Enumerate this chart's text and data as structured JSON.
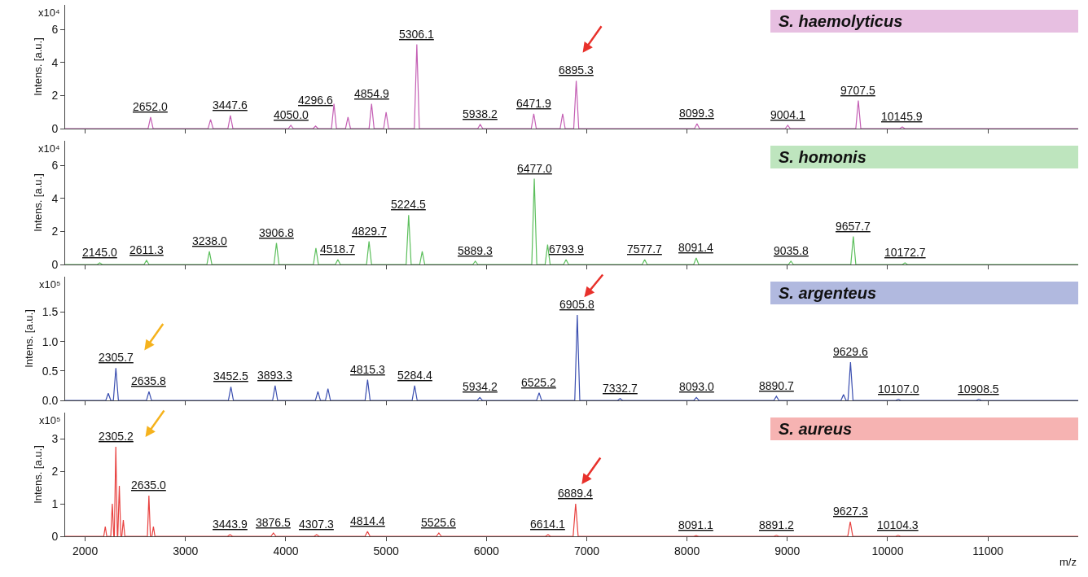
{
  "chart_data": [
    {
      "type": "line",
      "title": "S. haemolyticus",
      "ylabel": "Intens. [a.u.]",
      "color": "#c45fb4",
      "xlim": [
        1800,
        11900
      ],
      "ylim": [
        0,
        7.5
      ],
      "yticks": [
        0,
        2,
        4,
        6
      ],
      "xticks": [
        2000,
        3000,
        4000,
        5000,
        6000,
        7000,
        8000,
        9000,
        10000,
        11000
      ],
      "tick_labels": "y",
      "x": [
        1800,
        2627,
        2652.0,
        2677,
        3225,
        3250,
        3275,
        3422.6,
        3447.6,
        3472.6,
        4025,
        4050.0,
        4075,
        4271.6,
        4296.6,
        4321.6,
        4455,
        4480,
        4505,
        4595,
        4620,
        4645,
        4829.9,
        4854.9,
        4879.9,
        4975,
        5000,
        5025,
        5281.1,
        5306.1,
        5331.1,
        5913.2,
        5938.2,
        5963.2,
        6446.9,
        6471.9,
        6496.9,
        6735,
        6760,
        6785,
        6870.3,
        6895.3,
        6920.3,
        8074.3,
        8099.3,
        8124.3,
        8979.1,
        9004.1,
        9029.1,
        9682.5,
        9707.5,
        9732.5,
        10120.9,
        10145.9,
        10170.9,
        11900
      ],
      "values": [
        0,
        0,
        0.7,
        0,
        0,
        0.55,
        0,
        0,
        0.8,
        0,
        0,
        0.2,
        0,
        0,
        0.15,
        0,
        0,
        1.5,
        0,
        0,
        0.7,
        0,
        0,
        1.5,
        0,
        0,
        1.0,
        0,
        0,
        5.1,
        0,
        0,
        0.25,
        0,
        0,
        0.9,
        0,
        0,
        0.9,
        0,
        0,
        2.9,
        0,
        0,
        0.3,
        0,
        0,
        0.2,
        0,
        0,
        1.7,
        0,
        0,
        0.1,
        0,
        0
      ],
      "annotations": [
        "x10⁴",
        {
          "text": "2652.0",
          "x": 2652.0,
          "y": 0.7
        },
        {
          "text": "3447.6",
          "x": 3447.6,
          "y": 0.8
        },
        {
          "text": "4050.0",
          "x": 4050.0,
          "y": 0.2
        },
        {
          "text": "4296.6",
          "x": 4296.6,
          "y": 0.15
        },
        {
          "text": "4854.9",
          "x": 4854.9,
          "y": 1.5
        },
        {
          "text": "5306.1",
          "x": 5306.1,
          "y": 5.1
        },
        {
          "text": "5938.2",
          "x": 5938.2,
          "y": 0.25
        },
        {
          "text": "6471.9",
          "x": 6471.9,
          "y": 0.9
        },
        {
          "text": "6895.3",
          "x": 6895.3,
          "y": 2.9
        },
        {
          "text": "8099.3",
          "x": 8099.3,
          "y": 0.3
        },
        {
          "text": "9004.1",
          "x": 9004.1,
          "y": 0.2
        },
        {
          "text": "9707.5",
          "x": 9707.5,
          "y": 1.7
        },
        {
          "text": "10145.9",
          "x": 10145.9,
          "y": 0.1
        }
      ]
    },
    {
      "type": "line",
      "title": "S. homonis",
      "ylabel": "Intens. [a.u.]",
      "color": "#5cbf5c",
      "xlim": [
        1800,
        11900
      ],
      "ylim": [
        0,
        7.5
      ],
      "yticks": [
        0,
        2,
        4,
        6
      ],
      "xticks": [
        2000,
        3000,
        4000,
        5000,
        6000,
        7000,
        8000,
        9000,
        10000,
        11000
      ],
      "tick_labels": "y",
      "x": [
        1800,
        2120,
        2145.0,
        2170,
        2586.3,
        2611.3,
        2636.3,
        3213,
        3238.0,
        3263,
        3881.8,
        3906.8,
        3931.8,
        4275,
        4300,
        4325,
        4493.7,
        4518.7,
        4543.7,
        4804.7,
        4829.7,
        4854.7,
        5199.5,
        5224.5,
        5249.5,
        5335,
        5360,
        5385,
        5864.3,
        5889.3,
        5914.3,
        6452,
        6477.0,
        6502,
        6585,
        6610,
        6635,
        6768.9,
        6793.9,
        6818.9,
        7552.7,
        7577.7,
        7602.7,
        8066.4,
        8091.4,
        8116.4,
        9010.8,
        9035.8,
        9060.8,
        9632.7,
        9657.7,
        9682.7,
        10147.7,
        10172.7,
        10197.7,
        11900
      ],
      "values": [
        0,
        0,
        0.1,
        0,
        0,
        0.25,
        0,
        0,
        0.8,
        0,
        0,
        1.3,
        0,
        0,
        1.0,
        0,
        0,
        0.3,
        0,
        0,
        1.4,
        0,
        0,
        3.0,
        0,
        0,
        0.8,
        0,
        0,
        0.2,
        0,
        0,
        5.2,
        0,
        0,
        1.2,
        0,
        0,
        0.3,
        0,
        0,
        0.3,
        0,
        0,
        0.4,
        0,
        0,
        0.2,
        0,
        0,
        1.7,
        0,
        0,
        0.1,
        0,
        0
      ],
      "annotations": [
        "x10⁴",
        {
          "text": "2145.0",
          "x": 2145.0,
          "y": 0.1
        },
        {
          "text": "2611.3",
          "x": 2611.3,
          "y": 0.25
        },
        {
          "text": "3238.0",
          "x": 3238.0,
          "y": 0.8
        },
        {
          "text": "3906.8",
          "x": 3906.8,
          "y": 1.3
        },
        {
          "text": "4518.7",
          "x": 4518.7,
          "y": 0.3
        },
        {
          "text": "4829.7",
          "x": 4829.7,
          "y": 1.4
        },
        {
          "text": "5224.5",
          "x": 5224.5,
          "y": 3.0
        },
        {
          "text": "5889.3",
          "x": 5889.3,
          "y": 0.2
        },
        {
          "text": "6477.0",
          "x": 6477.0,
          "y": 5.2
        },
        {
          "text": "6793.9",
          "x": 6793.9,
          "y": 0.3
        },
        {
          "text": "7577.7",
          "x": 7577.7,
          "y": 0.3
        },
        {
          "text": "8091.4",
          "x": 8091.4,
          "y": 0.4
        },
        {
          "text": "9035.8",
          "x": 9035.8,
          "y": 0.2
        },
        {
          "text": "9657.7",
          "x": 9657.7,
          "y": 1.7
        },
        {
          "text": "10172.7",
          "x": 10172.7,
          "y": 0.1
        }
      ]
    },
    {
      "type": "line",
      "title": "S. argenteus",
      "ylabel": "Intens. [a.u.]",
      "color": "#3b4fb0",
      "xlim": [
        1800,
        11900
      ],
      "ylim": [
        0,
        2.1
      ],
      "yticks": [
        {
          "value": 0,
          "label": "0.0"
        },
        {
          "value": 0.5,
          "label": "0.5"
        },
        {
          "value": 1,
          "label": "1.0"
        },
        {
          "value": 1.5,
          "label": "1.5"
        }
      ],
      "xticks": [
        2000,
        3000,
        4000,
        5000,
        6000,
        7000,
        8000,
        9000,
        10000,
        11000
      ],
      "tick_labels": "y",
      "x": [
        1800,
        2205,
        2230,
        2255,
        2280.7,
        2305.7,
        2330.7,
        2610.8,
        2635.8,
        2660.8,
        3427.5,
        3452.5,
        3477.5,
        3868.3,
        3893.3,
        3918.3,
        4295,
        4320,
        4345,
        4395,
        4420,
        4445,
        4790.3,
        4815.3,
        4840.3,
        5259.4,
        5284.4,
        5309.4,
        5909.2,
        5934.2,
        5959.2,
        6500.2,
        6525.2,
        6550.2,
        6880.8,
        6905.8,
        6930.8,
        7307.7,
        7332.7,
        7357.7,
        8068.0,
        8093.0,
        8118.0,
        8865.7,
        8890.7,
        8915.7,
        9535,
        9560,
        9585,
        9604.6,
        9629.6,
        9654.6,
        10082.0,
        10107.0,
        10132.0,
        10883.5,
        10908.5,
        10933.5,
        11900
      ],
      "values": [
        0,
        0,
        0.12,
        0,
        0,
        0.55,
        0,
        0,
        0.15,
        0,
        0,
        0.23,
        0,
        0,
        0.25,
        0,
        0,
        0.15,
        0,
        0,
        0.2,
        0,
        0,
        0.35,
        0,
        0,
        0.25,
        0,
        0,
        0.05,
        0,
        0,
        0.13,
        0,
        0,
        1.45,
        0,
        0,
        0.03,
        0,
        0,
        0.05,
        0,
        0,
        0.07,
        0,
        0,
        0.1,
        0,
        0,
        0.65,
        0,
        0,
        0.02,
        0,
        0,
        0.02,
        0,
        0
      ],
      "annotations": [
        "x10⁵",
        {
          "text": "2305.7",
          "x": 2305.7,
          "y": 0.55
        },
        {
          "text": "2635.8",
          "x": 2635.8,
          "y": 0.15
        },
        {
          "text": "3452.5",
          "x": 3452.5,
          "y": 0.23
        },
        {
          "text": "3893.3",
          "x": 3893.3,
          "y": 0.25
        },
        {
          "text": "4815.3",
          "x": 4815.3,
          "y": 0.35
        },
        {
          "text": "5284.4",
          "x": 5284.4,
          "y": 0.25
        },
        {
          "text": "5934.2",
          "x": 5934.2,
          "y": 0.05
        },
        {
          "text": "6525.2",
          "x": 6525.2,
          "y": 0.13
        },
        {
          "text": "6905.8",
          "x": 6905.8,
          "y": 1.45
        },
        {
          "text": "7332.7",
          "x": 7332.7,
          "y": 0.03
        },
        {
          "text": "8093.0",
          "x": 8093.0,
          "y": 0.05
        },
        {
          "text": "8890.7",
          "x": 8890.7,
          "y": 0.07
        },
        {
          "text": "9629.6",
          "x": 9629.6,
          "y": 0.65
        },
        {
          "text": "10107.0",
          "x": 10107.0,
          "y": 0.02
        },
        {
          "text": "10908.5",
          "x": 10908.5,
          "y": 0.02
        }
      ]
    },
    {
      "type": "line",
      "title": "S. aureus",
      "ylabel": "Intens. [a.u.]",
      "xlabel": "m/z",
      "color": "#e8413f",
      "xlim": [
        1800,
        11900
      ],
      "ylim": [
        0,
        3.8
      ],
      "yticks": [
        0,
        1,
        2,
        3
      ],
      "xticks": [
        2000,
        3000,
        4000,
        5000,
        6000,
        7000,
        8000,
        9000,
        10000,
        11000
      ],
      "x": [
        1800,
        2185,
        2200,
        2215,
        2255,
        2270,
        2285,
        2290.2,
        2305.2,
        2320.2,
        2325,
        2340,
        2355,
        2365,
        2380,
        2395,
        2620,
        2635.0,
        2650,
        2665,
        2680,
        2695,
        3418.9,
        3443.9,
        3468.9,
        3851.5,
        3876.5,
        3901.5,
        4282.3,
        4307.3,
        4332.3,
        4789.4,
        4814.4,
        4839.4,
        5500.6,
        5525.6,
        5550.6,
        6589.1,
        6614.1,
        6639.1,
        6864.4,
        6889.4,
        6914.4,
        8066.1,
        8091.1,
        8116.1,
        8866.2,
        8891.2,
        8916.2,
        9602.3,
        9627.3,
        9652.3,
        10079.3,
        10104.3,
        10129.3,
        11900
      ],
      "values": [
        0,
        0,
        0.3,
        0,
        0,
        1.0,
        0,
        0,
        2.75,
        0,
        0,
        1.55,
        0,
        0,
        0.5,
        0,
        0,
        1.25,
        0,
        0,
        0.3,
        0,
        0,
        0.05,
        0,
        0,
        0.1,
        0,
        0,
        0.05,
        0,
        0,
        0.15,
        0,
        0,
        0.1,
        0,
        0,
        0.05,
        0,
        0,
        1.0,
        0,
        0,
        0.02,
        0,
        0,
        0.03,
        0,
        0,
        0.45,
        0,
        0,
        0.03,
        0,
        0
      ],
      "annotations": [
        "x10⁵",
        {
          "text": "2305.2",
          "x": 2305.2,
          "y": 2.75
        },
        {
          "text": "2635.0",
          "x": 2635.0,
          "y": 1.25
        },
        {
          "text": "3443.9",
          "x": 3443.9,
          "y": 0.05
        },
        {
          "text": "3876.5",
          "x": 3876.5,
          "y": 0.1
        },
        {
          "text": "4307.3",
          "x": 4307.3,
          "y": 0.05
        },
        {
          "text": "4814.4",
          "x": 4814.4,
          "y": 0.15
        },
        {
          "text": "5525.6",
          "x": 5525.6,
          "y": 0.1
        },
        {
          "text": "6614.1",
          "x": 6614.1,
          "y": 0.05
        },
        {
          "text": "6889.4",
          "x": 6889.4,
          "y": 1.0
        },
        {
          "text": "8091.1",
          "x": 8091.1,
          "y": 0.02
        },
        {
          "text": "8891.2",
          "x": 8891.2,
          "y": 0.03
        },
        {
          "text": "9627.3",
          "x": 9627.3,
          "y": 0.45
        },
        {
          "text": "10104.3",
          "x": 10104.3,
          "y": 0.03
        }
      ]
    }
  ]
}
